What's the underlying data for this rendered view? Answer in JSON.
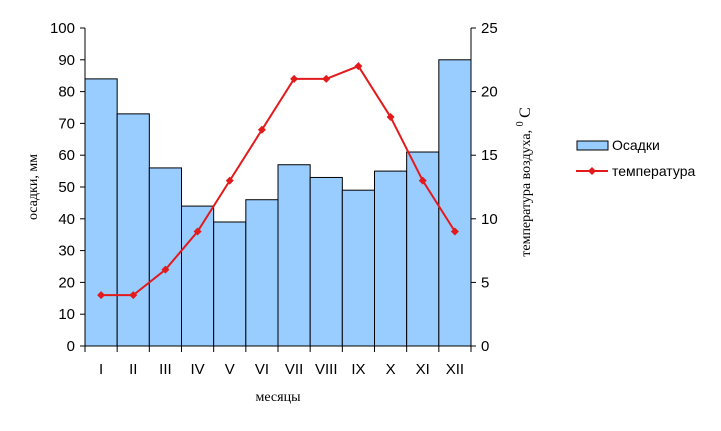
{
  "chart_data": {
    "type": "bar+line",
    "categories": [
      "I",
      "II",
      "III",
      "IV",
      "V",
      "VI",
      "VII",
      "VIII",
      "IX",
      "X",
      "XI",
      "XII"
    ],
    "series": [
      {
        "name": "Осадки",
        "type": "bar",
        "axis": "left",
        "color": "#99ccff",
        "values": [
          84,
          73,
          56,
          44,
          39,
          46,
          57,
          53,
          49,
          55,
          61,
          90
        ]
      },
      {
        "name": "температура",
        "type": "line",
        "axis": "right",
        "color": "#e31a1c",
        "values": [
          4,
          4,
          6,
          9,
          13,
          17,
          21,
          21,
          22,
          18,
          13,
          9
        ]
      }
    ],
    "xlabel": "месяцы",
    "ylabel": "осадки, мм",
    "ylabel_right": "температура воздуха,",
    "ylabel_right_sup": "0",
    "ylabel_right_unit": "C",
    "ylim": [
      0,
      100
    ],
    "ylim_right": [
      0,
      25
    ],
    "yticks": [
      0,
      10,
      20,
      30,
      40,
      50,
      60,
      70,
      80,
      90,
      100
    ],
    "yticks_right": [
      0,
      5,
      10,
      15,
      20,
      25
    ],
    "grid": false,
    "legend_position": "right"
  }
}
